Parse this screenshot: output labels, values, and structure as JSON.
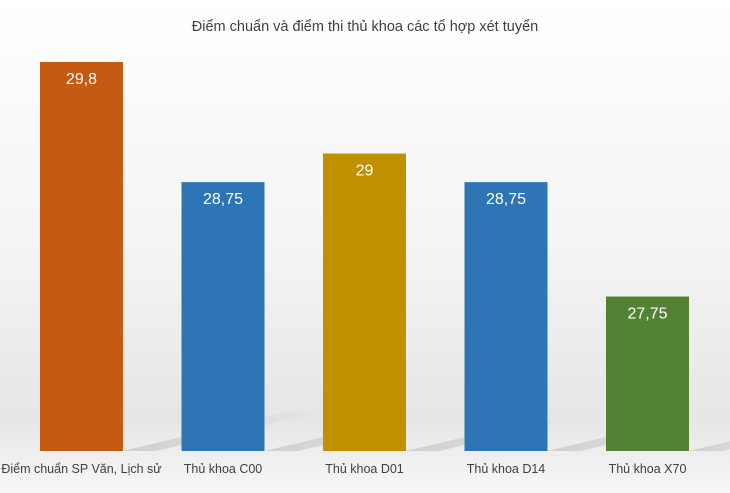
{
  "chart_data": {
    "type": "bar",
    "title": "Điểm chuẩn và điểm thi thủ khoa các tổ hợp xét tuyển",
    "xlabel": "",
    "ylabel": "",
    "categories": [
      "Điểm chuẩn SP Văn, Lịch sử",
      "Thủ khoa C00",
      "Thủ khoa D01",
      "Thủ khoa D14",
      "Thủ khoa X70"
    ],
    "values": [
      29.8,
      28.75,
      29,
      28.75,
      27.75
    ],
    "value_labels": [
      "29,8",
      "28,75",
      "29",
      "28,75",
      "27,75"
    ],
    "colors": [
      "#C55A11",
      "#2E75B6",
      "#BF9000",
      "#2E75B6",
      "#548235"
    ],
    "ylim": [
      26.4,
      29.8
    ],
    "grid": false,
    "legend": "none"
  }
}
